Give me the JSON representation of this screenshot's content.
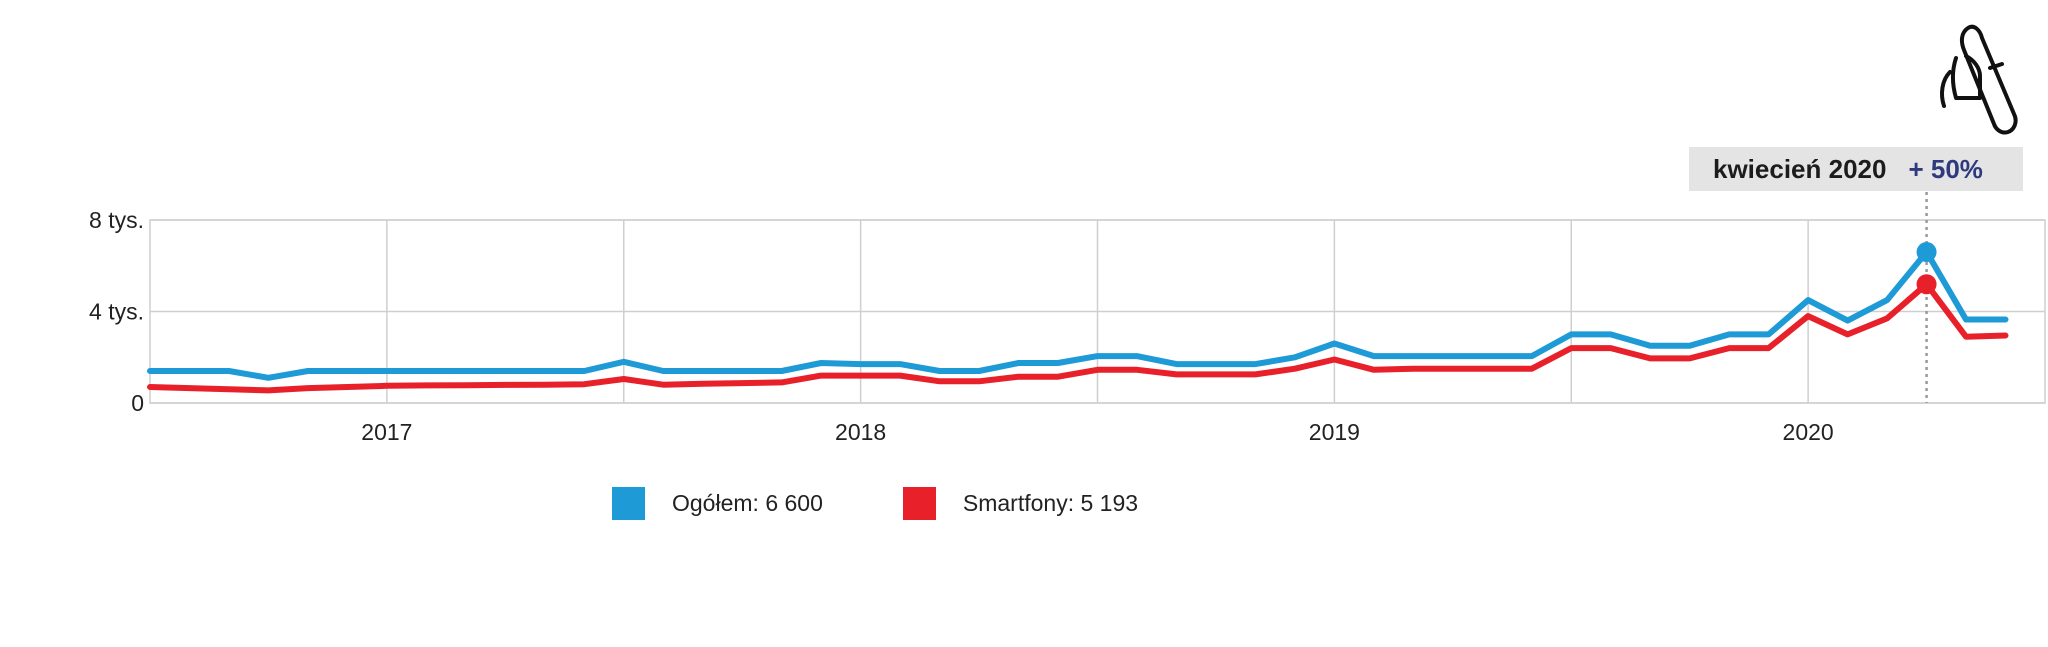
{
  "tooltip": {
    "date": "kwiecień 2020",
    "change": "+ 50%"
  },
  "legend": [
    {
      "label": "Ogółem: 6 600",
      "color": "#1e9ad6"
    },
    {
      "label": "Smartfony: 5 193",
      "color": "#e8202a"
    }
  ],
  "icons": {
    "touch": "hand-touch-icon"
  },
  "chart_data": {
    "type": "line",
    "title": "",
    "xlabel": "",
    "ylabel": "",
    "x_ticks": [
      "2017",
      "2018",
      "2019",
      "2020"
    ],
    "y_ticks": [
      {
        "value": 0,
        "label": "0"
      },
      {
        "value": 4000,
        "label": "4 tys."
      },
      {
        "value": 8000,
        "label": "8 tys."
      }
    ],
    "ylim": [
      0,
      8000
    ],
    "xlim": [
      "2016-07",
      "2020-07"
    ],
    "grid": true,
    "highlight": {
      "x": "2020-04"
    },
    "x": [
      "2016-07",
      "2016-08",
      "2016-09",
      "2016-10",
      "2016-11",
      "2016-12",
      "2017-01",
      "2017-02",
      "2017-03",
      "2017-04",
      "2017-05",
      "2017-06",
      "2017-07",
      "2017-08",
      "2017-09",
      "2017-10",
      "2017-11",
      "2017-12",
      "2018-01",
      "2018-02",
      "2018-03",
      "2018-04",
      "2018-05",
      "2018-06",
      "2018-07",
      "2018-08",
      "2018-09",
      "2018-10",
      "2018-11",
      "2018-12",
      "2019-01",
      "2019-02",
      "2019-03",
      "2019-04",
      "2019-05",
      "2019-06",
      "2019-07",
      "2019-08",
      "2019-09",
      "2019-10",
      "2019-11",
      "2019-12",
      "2020-01",
      "2020-02",
      "2020-03",
      "2020-04",
      "2020-05",
      "2020-06"
    ],
    "series": [
      {
        "name": "Ogółem",
        "color": "#1e9ad6",
        "values": [
          1400,
          1400,
          1400,
          1100,
          1400,
          1400,
          1400,
          1400,
          1400,
          1400,
          1400,
          1400,
          1800,
          1400,
          1400,
          1400,
          1400,
          1750,
          1700,
          1700,
          1400,
          1400,
          1750,
          1750,
          2050,
          2050,
          1700,
          1700,
          1700,
          2000,
          2600,
          2050,
          2050,
          2050,
          2050,
          2050,
          3000,
          3000,
          2500,
          2500,
          3000,
          3000,
          4500,
          3600,
          4500,
          6600,
          3650,
          3650
        ]
      },
      {
        "name": "Smartfony",
        "color": "#e8202a",
        "values": [
          700,
          650,
          600,
          550,
          650,
          700,
          750,
          770,
          780,
          790,
          800,
          820,
          1050,
          800,
          840,
          870,
          900,
          1200,
          1200,
          1200,
          950,
          950,
          1150,
          1150,
          1450,
          1450,
          1250,
          1250,
          1250,
          1500,
          1900,
          1450,
          1500,
          1500,
          1500,
          1500,
          2400,
          2400,
          1950,
          1950,
          2400,
          2400,
          3800,
          3000,
          3700,
          5193,
          2900,
          2950
        ]
      }
    ]
  }
}
